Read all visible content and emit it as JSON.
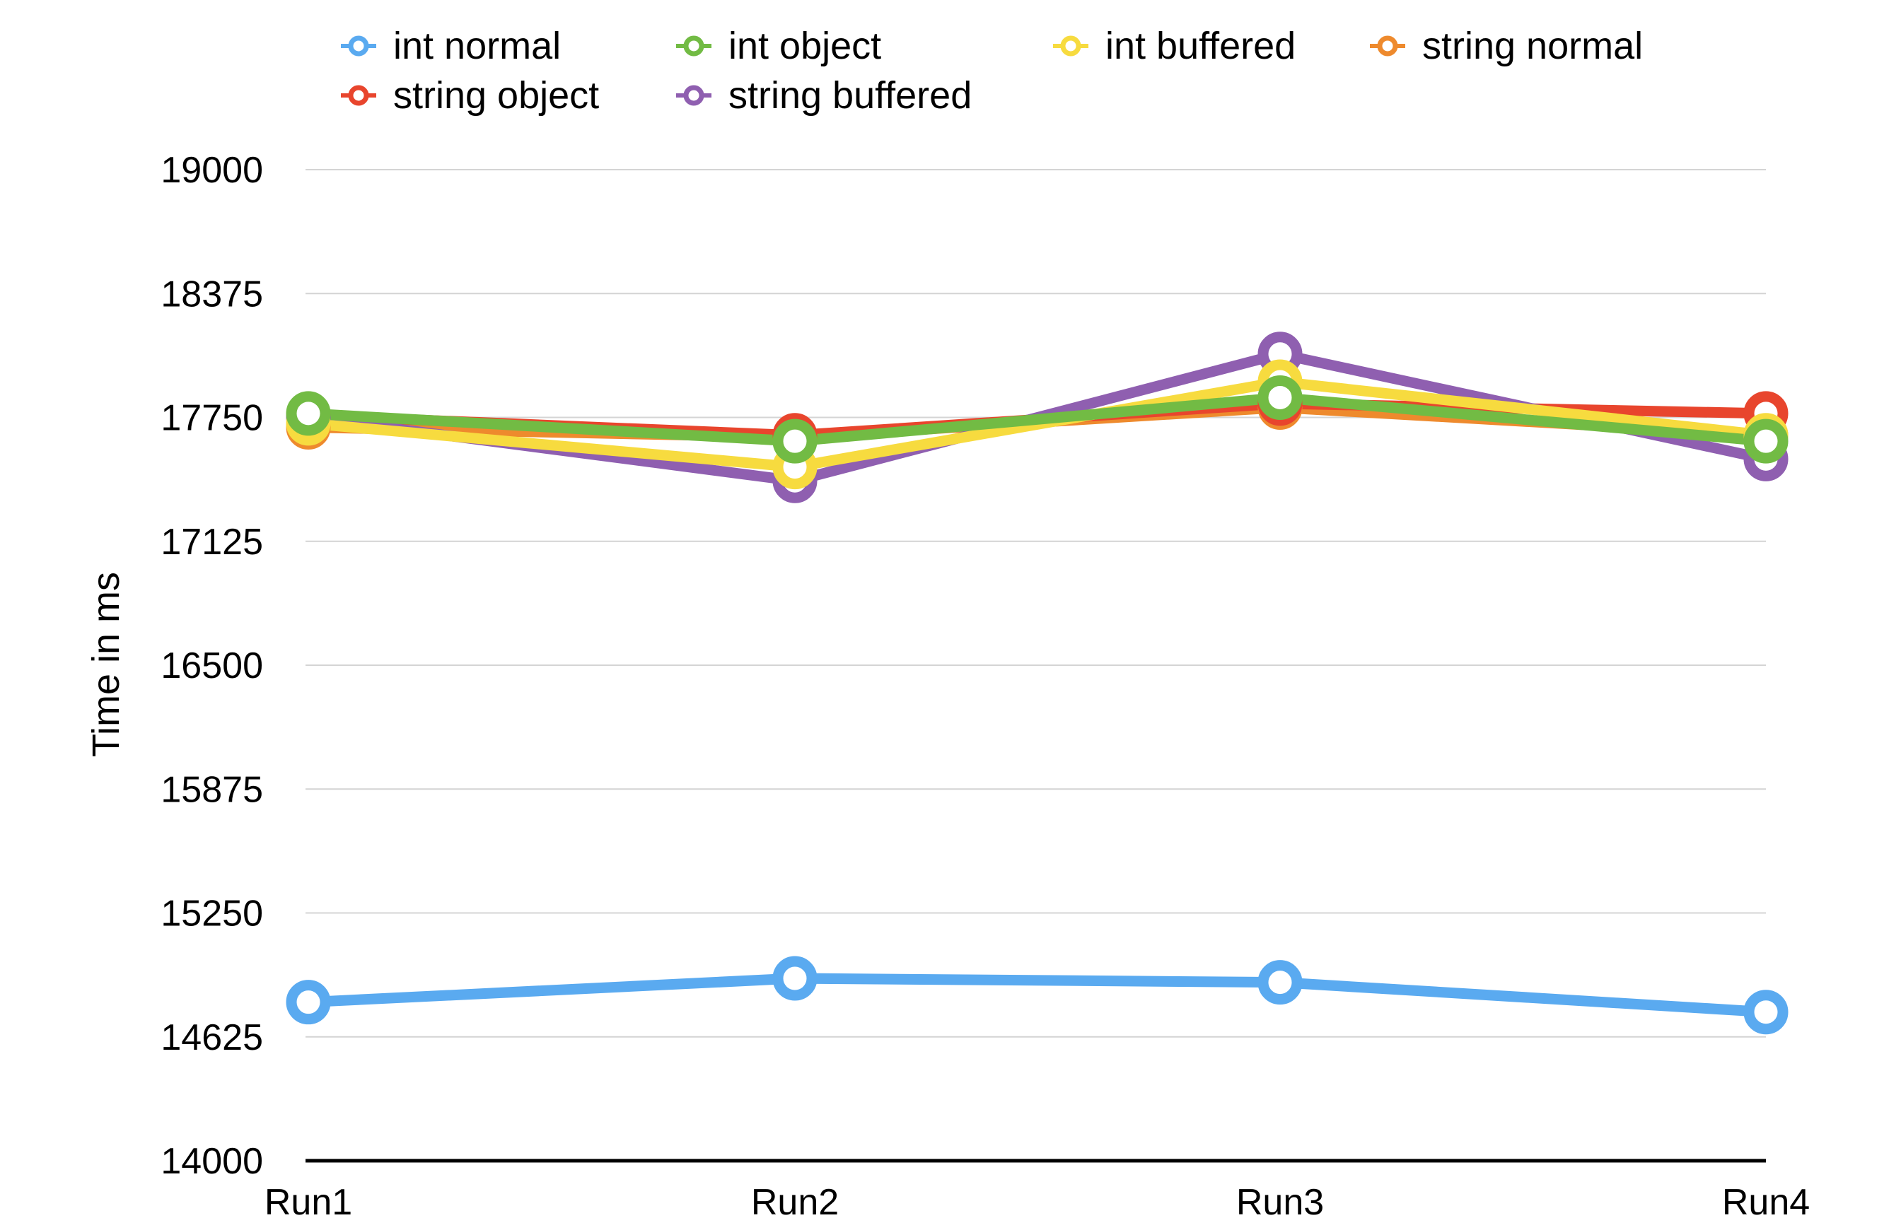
{
  "chart_data": {
    "type": "line",
    "categories": [
      "Run1",
      "Run2",
      "Run3",
      "Run4"
    ],
    "ylabel": "Time in ms",
    "xlabel": "",
    "ylim": [
      14000,
      19000
    ],
    "yticks": [
      14000,
      14625,
      15250,
      15875,
      16500,
      17125,
      17750,
      18375,
      19000
    ],
    "grid": true,
    "legend_position": "top",
    "series": [
      {
        "name": "int normal",
        "color": "#5AAAF0",
        "values": [
          14800,
          14920,
          14900,
          14750
        ]
      },
      {
        "name": "int object",
        "color": "#72BB44",
        "values": [
          17770,
          17630,
          17850,
          17630
        ]
      },
      {
        "name": "int buffered",
        "color": "#F7DB3F",
        "values": [
          17720,
          17500,
          17930,
          17660
        ]
      },
      {
        "name": "string normal",
        "color": "#EE8A2D",
        "values": [
          17700,
          17650,
          17800,
          17660
        ]
      },
      {
        "name": "string object",
        "color": "#E8452D",
        "values": [
          17760,
          17660,
          17820,
          17770
        ]
      },
      {
        "name": "string buffered",
        "color": "#8F5FB0",
        "values": [
          17750,
          17430,
          18070,
          17540
        ]
      }
    ]
  }
}
